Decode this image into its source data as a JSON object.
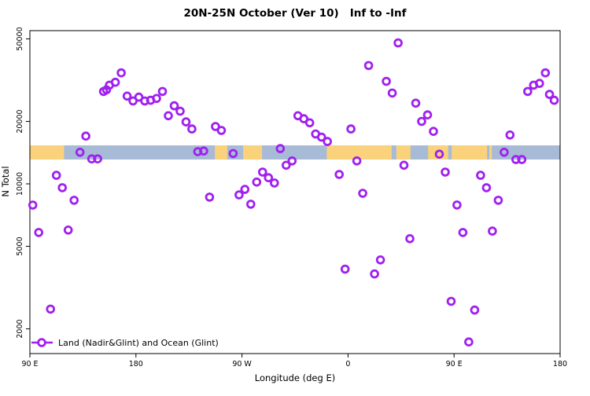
{
  "legend": {
    "label": "Land (Nadir&Glint) and Ocean (Glint)"
  },
  "chart_data": {
    "type": "scatter",
    "title": "20N-25N October (Ver 10)   Inf to -Inf",
    "xlabel": "Longitude (deg E)",
    "ylabel": "N Total",
    "grid": false,
    "x_axis": {
      "range_deg_east": [
        90,
        540
      ],
      "ticks": [
        {
          "deg": 90,
          "label": "90 E"
        },
        {
          "deg": 180,
          "label": "180"
        },
        {
          "deg": 270,
          "label": "90 W"
        },
        {
          "deg": 360,
          "label": "0"
        },
        {
          "deg": 450,
          "label": "90 E"
        },
        {
          "deg": 540,
          "label": "180"
        }
      ]
    },
    "y_axis": {
      "scale": "log10",
      "range": [
        1550,
        55000
      ],
      "ticks": [
        {
          "value": 2000,
          "label": "2000"
        },
        {
          "value": 5000,
          "label": "5000"
        },
        {
          "value": 10000,
          "label": "10000"
        },
        {
          "value": 20000,
          "label": "20000"
        },
        {
          "value": 50000,
          "label": "50000"
        }
      ]
    },
    "map_band": {
      "description": "20N-25N latitude land/ocean strip drawn across plot",
      "value_range": [
        13100,
        15330
      ],
      "ocean_color": "#A7BBD7",
      "land_color": "#FAD27C",
      "land_segments_deg": [
        [
          90,
          119
        ],
        [
          247,
          257.5
        ],
        [
          271,
          287
        ],
        [
          342,
          397
        ],
        [
          401,
          413
        ],
        [
          428,
          445
        ],
        [
          448,
          478
        ],
        [
          480,
          482
        ]
      ]
    },
    "series": [
      {
        "name": "Land (Nadir&Glint) and Ocean (Glint)",
        "marker": "open-circle",
        "color": "#A020F0",
        "points": [
          [
            92.5,
            7900
          ],
          [
            97.5,
            5830
          ],
          [
            107.5,
            2490
          ],
          [
            112.5,
            11000
          ],
          [
            117.5,
            9580
          ],
          [
            122.5,
            5990
          ],
          [
            127.5,
            8330
          ],
          [
            132.5,
            14200
          ],
          [
            137.5,
            17000
          ],
          [
            142.5,
            13200
          ],
          [
            147.5,
            13200
          ],
          [
            152.5,
            27900
          ],
          [
            155,
            28400
          ],
          [
            157.5,
            29900
          ],
          [
            162.5,
            30900
          ],
          [
            167.5,
            34300
          ],
          [
            172.5,
            26500
          ],
          [
            177.5,
            25100
          ],
          [
            182.5,
            26200
          ],
          [
            187.5,
            25100
          ],
          [
            192.5,
            25300
          ],
          [
            197.5,
            25800
          ],
          [
            202.5,
            27900
          ],
          [
            207.5,
            21300
          ],
          [
            212.5,
            23800
          ],
          [
            217.5,
            22400
          ],
          [
            222.5,
            19900
          ],
          [
            227.5,
            18400
          ],
          [
            232.5,
            14300
          ],
          [
            237.5,
            14400
          ],
          [
            242.5,
            8630
          ],
          [
            247.5,
            18900
          ],
          [
            252.5,
            18100
          ],
          [
            262.5,
            14000
          ],
          [
            267.5,
            8850
          ],
          [
            272.5,
            9410
          ],
          [
            277.5,
            7980
          ],
          [
            282.5,
            10200
          ],
          [
            287.5,
            11400
          ],
          [
            292.5,
            10700
          ],
          [
            297.5,
            10100
          ],
          [
            302.5,
            14800
          ],
          [
            307.5,
            12300
          ],
          [
            312.5,
            12900
          ],
          [
            317.5,
            21300
          ],
          [
            322.5,
            20600
          ],
          [
            327.5,
            19700
          ],
          [
            332.5,
            17400
          ],
          [
            337.5,
            16800
          ],
          [
            342.5,
            16000
          ],
          [
            352.5,
            11100
          ],
          [
            357.5,
            3880
          ],
          [
            362.5,
            18400
          ],
          [
            367.5,
            12900
          ],
          [
            372.5,
            9010
          ],
          [
            377.5,
            37200
          ],
          [
            382.5,
            3680
          ],
          [
            387.5,
            4300
          ],
          [
            392.5,
            31200
          ],
          [
            397.5,
            27400
          ],
          [
            402.5,
            47800
          ],
          [
            407.5,
            12300
          ],
          [
            412.5,
            5440
          ],
          [
            417.5,
            24500
          ],
          [
            422.5,
            20000
          ],
          [
            427.5,
            21500
          ],
          [
            432.5,
            17900
          ],
          [
            437.5,
            13900
          ],
          [
            442.5,
            11400
          ],
          [
            447.5,
            2715
          ],
          [
            452.5,
            7910
          ],
          [
            457.5,
            5830
          ],
          [
            462.5,
            1730
          ],
          [
            467.5,
            2465
          ],
          [
            472.5,
            11000
          ],
          [
            477.5,
            9580
          ],
          [
            482.5,
            5920
          ],
          [
            487.5,
            8330
          ],
          [
            492.5,
            14200
          ],
          [
            497.5,
            17200
          ],
          [
            502.5,
            13100
          ],
          [
            507.5,
            13100
          ],
          [
            512.5,
            27900
          ],
          [
            517.5,
            29900
          ],
          [
            522.5,
            30500
          ],
          [
            527.5,
            34300
          ],
          [
            531,
            27000
          ],
          [
            535,
            25300
          ]
        ]
      }
    ]
  }
}
